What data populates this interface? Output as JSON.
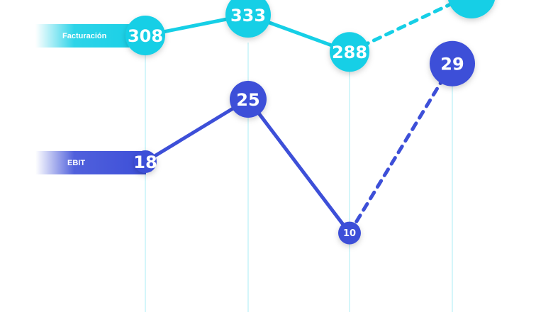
{
  "chart_data": {
    "type": "line",
    "title": "",
    "xlabel": "",
    "ylabel": "",
    "grid": true,
    "legend": "left",
    "colors": {
      "Facturación": "#16cfe6",
      "EBIT": "#3d4fd8",
      "gridline": "#a8ecf5"
    },
    "series": [
      {
        "name": "Facturación",
        "values": [
          308,
          333,
          288,
          null
        ],
        "labels": [
          "308",
          "333",
          "288",
          ""
        ],
        "solid_until": 2
      },
      {
        "name": "EBIT",
        "values": [
          18,
          25,
          10,
          29
        ],
        "labels": [
          "18",
          "25",
          "10",
          "29"
        ],
        "solid_until": 2
      }
    ]
  }
}
